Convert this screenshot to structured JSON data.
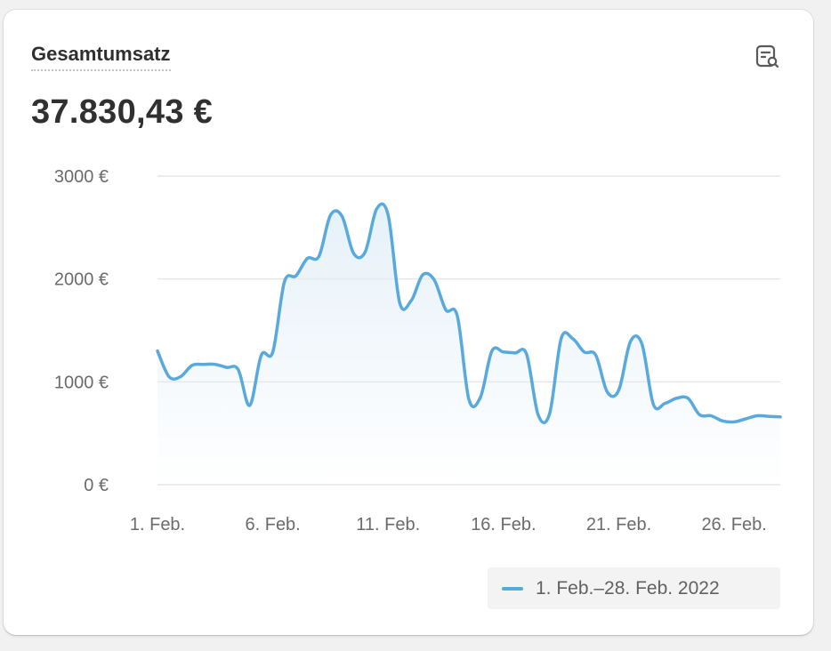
{
  "card": {
    "title": "Gesamtumsatz",
    "total": "37.830,43 €",
    "explore_icon": "report-search-icon"
  },
  "colors": {
    "line": "#58a9de",
    "fill_top": "#e3eff8",
    "grid": "#e6e6e6",
    "axis_text": "#6b6b6b"
  },
  "chart_data": {
    "type": "area",
    "title": "Gesamtumsatz",
    "ylim": [
      0,
      3000
    ],
    "y_ticks": [
      "0 €",
      "1000 €",
      "2000 €",
      "3000 €"
    ],
    "y_tick_values": [
      0,
      1000,
      2000,
      3000
    ],
    "x_ticks": [
      "1. Feb.",
      "6. Feb.",
      "11. Feb.",
      "16. Feb.",
      "21. Feb.",
      "26. Feb."
    ],
    "x_tick_days": [
      1,
      6,
      11,
      16,
      21,
      26
    ],
    "grid": true,
    "legend_position": "bottom-right",
    "series": [
      {
        "name": "1. Feb.–28. Feb. 2022",
        "x": [
          "1. Feb.",
          "1,5. Feb.",
          "2. Feb.",
          "2,5. Feb.",
          "3. Feb.",
          "3,5. Feb.",
          "4. Feb.",
          "4,5. Feb.",
          "5. Feb.",
          "5,5. Feb.",
          "6. Feb.",
          "6,5. Feb.",
          "7. Feb.",
          "7,5. Feb.",
          "8. Feb.",
          "8,5. Feb.",
          "9. Feb.",
          "9,5. Feb.",
          "10. Feb.",
          "10,5. Feb.",
          "11. Feb.",
          "11,5. Feb.",
          "12. Feb.",
          "12,5. Feb.",
          "13. Feb.",
          "13,5. Feb.",
          "14. Feb.",
          "14,5. Feb.",
          "15. Feb.",
          "15,5. Feb.",
          "16. Feb.",
          "16,5. Feb.",
          "17. Feb.",
          "17,5. Feb.",
          "18. Feb.",
          "18,5. Feb.",
          "19. Feb.",
          "19,5. Feb.",
          "20. Feb.",
          "20,5. Feb.",
          "21. Feb.",
          "21,5. Feb.",
          "22. Feb.",
          "22,5. Feb.",
          "23. Feb.",
          "23,5. Feb.",
          "24. Feb.",
          "24,5. Feb.",
          "25. Feb.",
          "25,5. Feb.",
          "26. Feb.",
          "26,5. Feb.",
          "27. Feb.",
          "27,5. Feb.",
          "28. Feb."
        ],
        "values": [
          1300,
          1050,
          1050,
          1160,
          1170,
          1170,
          1140,
          1120,
          770,
          1260,
          1290,
          1970,
          2030,
          2200,
          2220,
          2620,
          2610,
          2250,
          2260,
          2680,
          2620,
          1770,
          1790,
          2040,
          1990,
          1700,
          1640,
          830,
          850,
          1300,
          1290,
          1280,
          1270,
          680,
          690,
          1420,
          1420,
          1290,
          1260,
          900,
          920,
          1390,
          1370,
          780,
          790,
          840,
          840,
          680,
          670,
          620,
          610,
          640,
          670,
          665,
          660
        ]
      }
    ]
  },
  "legend": {
    "label": "1. Feb.–28. Feb. 2022"
  }
}
